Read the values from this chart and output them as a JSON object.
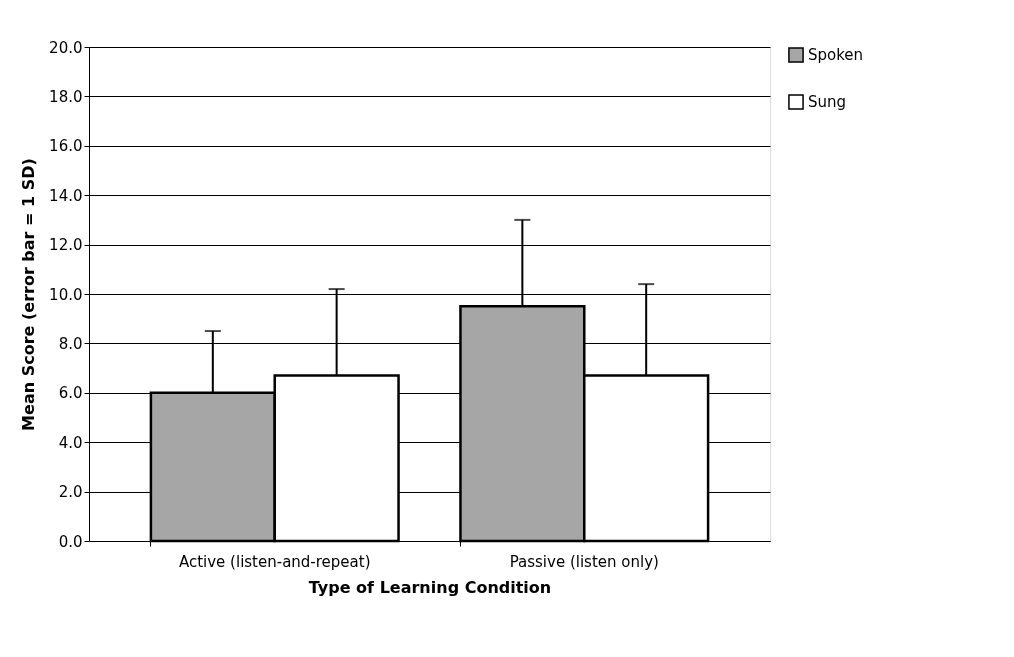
{
  "chart_data": {
    "type": "bar",
    "xlabel": "Type of Learning Condition",
    "ylabel": "Mean Score (error bar = 1 SD)",
    "categories": [
      "Active (listen-and-repeat)",
      "Passive (listen only)"
    ],
    "series": [
      {
        "name": "Spoken",
        "color": "#a6a6a6",
        "values": [
          6.0,
          9.5
        ],
        "errors": [
          [
            6.0,
            8.5
          ],
          [
            9.5,
            13.0
          ]
        ]
      },
      {
        "name": "Sung",
        "color": "#ffffff",
        "values": [
          6.7,
          6.7
        ],
        "errors": [
          [
            6.7,
            10.2
          ],
          [
            6.7,
            10.4
          ]
        ]
      }
    ],
    "ylim": [
      0,
      20
    ],
    "yticks": [
      {
        "value": 0,
        "label": "0.0"
      },
      {
        "value": 2,
        "label": "2.0"
      },
      {
        "value": 4,
        "label": "4.0"
      },
      {
        "value": 6,
        "label": "6.0"
      },
      {
        "value": 8,
        "label": "8.0"
      },
      {
        "value": 10,
        "label": "10.0"
      },
      {
        "value": 12,
        "label": "12.0"
      },
      {
        "value": 14,
        "label": "14.0"
      },
      {
        "value": 16,
        "label": "16.0"
      },
      {
        "value": 18,
        "label": "18.0"
      },
      {
        "value": 20,
        "label": "20.0"
      }
    ],
    "grid": "y",
    "legend": "right"
  }
}
